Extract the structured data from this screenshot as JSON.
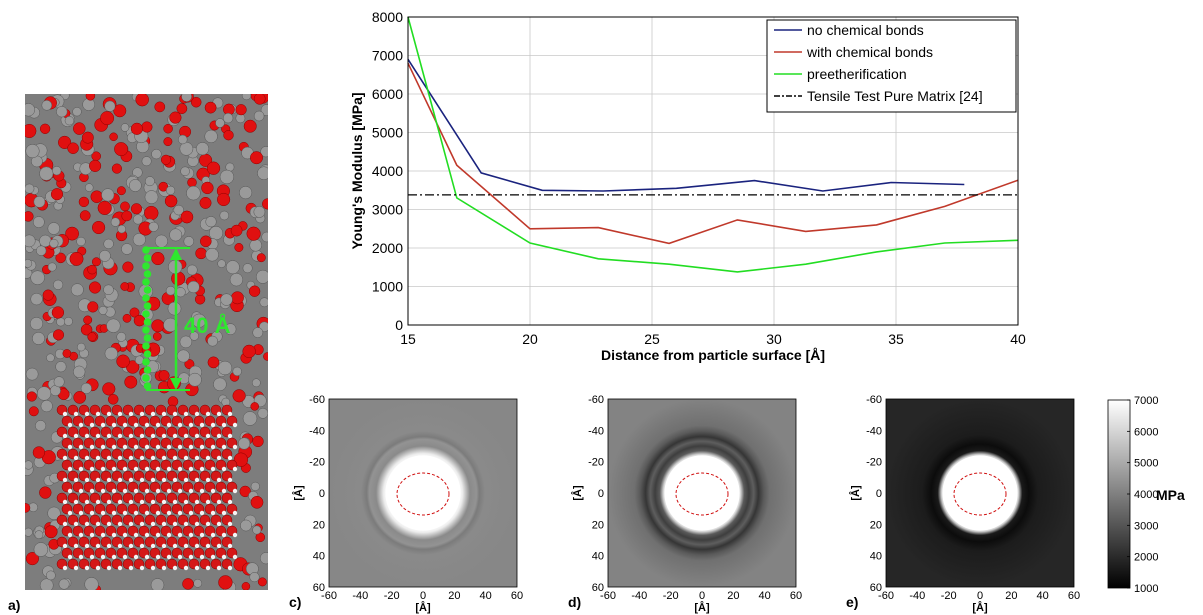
{
  "panels": {
    "a": "a)",
    "c": "c)",
    "d": "d)",
    "e": "e)"
  },
  "annotation": {
    "distance_label": "40 Å",
    "color": "#2ee82e"
  },
  "chart_data": [
    {
      "type": "line",
      "xlabel": "Distance from particle surface [Å]",
      "ylabel": "Young's Modulus [MPa]",
      "xlim": [
        15,
        40
      ],
      "ylim": [
        0,
        8000
      ],
      "xticks": [
        "15",
        "20",
        "25",
        "30",
        "35",
        "40"
      ],
      "yticks": [
        "0",
        "1000",
        "2000",
        "3000",
        "4000",
        "5000",
        "6000",
        "7000",
        "8000"
      ],
      "grid": true,
      "legend_position": "top-right",
      "series": [
        {
          "name": "no chemical bonds",
          "color": "#1a237e",
          "style": "solid",
          "x": [
            15,
            18,
            20.5,
            23,
            26,
            29.2,
            32,
            34.8,
            37.8
          ],
          "y": [
            6900,
            3950,
            3500,
            3480,
            3550,
            3750,
            3480,
            3700,
            3650
          ]
        },
        {
          "name": "with chemical bonds",
          "color": "#c0392b",
          "style": "solid",
          "x": [
            15,
            17,
            20,
            22.8,
            25.7,
            28.5,
            31.3,
            34.2,
            37,
            40
          ],
          "y": [
            6800,
            4150,
            2500,
            2530,
            2120,
            2730,
            2430,
            2600,
            3080,
            3760
          ]
        },
        {
          "name": "preetherification",
          "color": "#22dd22",
          "style": "solid",
          "x": [
            15,
            17,
            20,
            22.8,
            25.7,
            28.5,
            31.3,
            34.2,
            37,
            40
          ],
          "y": [
            8000,
            3300,
            2130,
            1720,
            1580,
            1380,
            1580,
            1900,
            2130,
            2200
          ]
        },
        {
          "name": "Tensile Test Pure Matrix [24]",
          "color": "#000000",
          "style": "dashdot",
          "x": [
            15,
            40
          ],
          "y": [
            3380,
            3380
          ]
        }
      ]
    },
    {
      "type": "heatmap",
      "panel": "c",
      "xlabel": "[Å]",
      "ylabel": "[Å]",
      "xticks": [
        "-60",
        "-40",
        "-20",
        "0",
        "20",
        "40",
        "60"
      ],
      "yticks": [
        "-60",
        "-40",
        "-20",
        "0",
        "20",
        "40",
        "60"
      ],
      "xlim": [
        -60,
        60
      ],
      "ylim": [
        -60,
        60
      ],
      "background_mpa": 4150,
      "core_radius": 24,
      "core_mpa": 7000
    },
    {
      "type": "heatmap",
      "panel": "d",
      "xlabel": "[Å]",
      "ylabel": "[Å]",
      "xticks": [
        "-60",
        "-40",
        "-20",
        "0",
        "20",
        "40",
        "60"
      ],
      "yticks": [
        "-60",
        "-40",
        "-20",
        "0",
        "20",
        "40",
        "60"
      ],
      "xlim": [
        -60,
        60
      ],
      "ylim": [
        -60,
        60
      ],
      "background_mpa": 4000,
      "core_radius": 24,
      "core_mpa": 7000
    },
    {
      "type": "heatmap",
      "panel": "e",
      "xlabel": "[Å]",
      "ylabel": "[Å]",
      "xticks": [
        "-60",
        "-40",
        "-20",
        "0",
        "20",
        "40",
        "60"
      ],
      "yticks": [
        "-60",
        "-40",
        "-20",
        "0",
        "20",
        "40",
        "60"
      ],
      "xlim": [
        -60,
        60
      ],
      "ylim": [
        -60,
        60
      ],
      "background_mpa": 2100,
      "core_radius": 24,
      "core_mpa": 7000
    }
  ],
  "colorbar": {
    "unit": "MPa",
    "range": [
      1000,
      7000
    ],
    "ticks": [
      "7000",
      "6000",
      "5000",
      "4000",
      "3000",
      "2000",
      "1000"
    ]
  }
}
